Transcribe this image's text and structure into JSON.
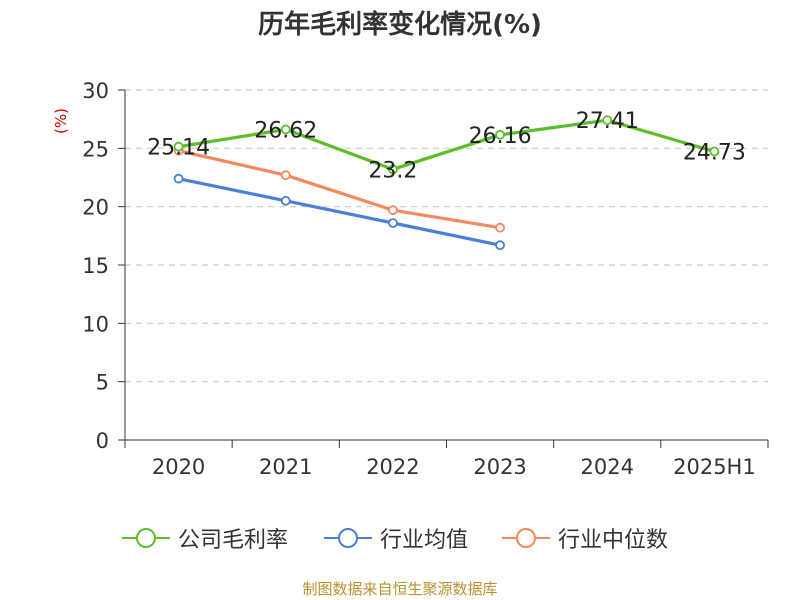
{
  "chart_data": {
    "type": "line",
    "title": "历年毛利率变化情况(%)",
    "ylabel": "(%)",
    "xlabel": "",
    "categories": [
      "2020",
      "2021",
      "2022",
      "2023",
      "2024",
      "2025H1"
    ],
    "ylim": [
      0,
      30
    ],
    "yticks": [
      0,
      5,
      10,
      15,
      20,
      25,
      30
    ],
    "grid": true,
    "legend_position": "bottom",
    "series": [
      {
        "name": "公司毛利率",
        "color": "#5cbf2a",
        "values": [
          25.14,
          26.62,
          23.2,
          26.16,
          27.41,
          24.73
        ],
        "value_labels": [
          "25.14",
          "26.62",
          "23.2",
          "26.16",
          "27.41",
          "24.73"
        ]
      },
      {
        "name": "行业均值",
        "color": "#4a7fdc",
        "values": [
          22.4,
          20.5,
          18.6,
          16.7,
          null,
          null
        ]
      },
      {
        "name": "行业中位数",
        "color": "#f4895f",
        "values": [
          24.8,
          22.7,
          19.7,
          18.2,
          null,
          null
        ]
      }
    ]
  },
  "source": "制图数据来自恒生聚源数据库"
}
